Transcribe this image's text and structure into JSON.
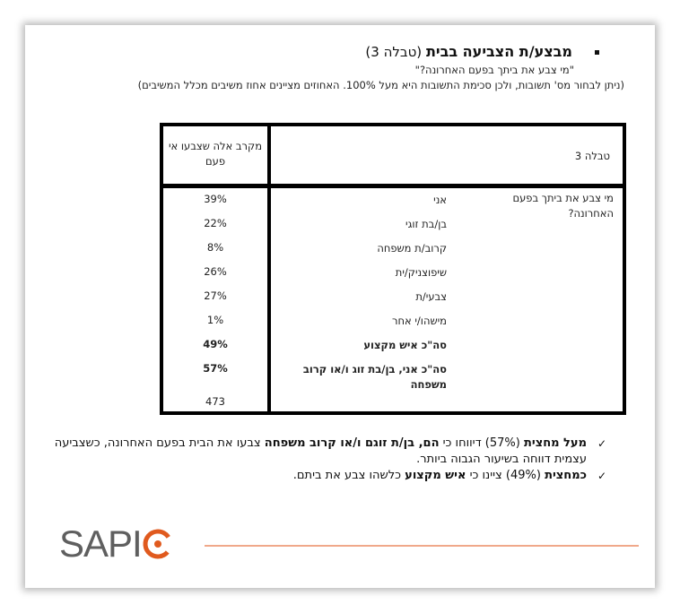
{
  "header": {
    "title_bold": "מבצע/ת הצביעה בבית",
    "title_rest": " (טבלה 3)",
    "question": "\"מי צבע את ביתך בפעם האחרונה?\"",
    "note": "(ניתן לבחור מס' תשובות, ולכן סכימת התשובות היא מעל 100%. האחוזים מציינים אחוז משיבים מכלל המשיבים)"
  },
  "table": {
    "col_header": "מקרב אלה שצבעו אי פעם",
    "table_label": "טבלה 3",
    "question": "מי צבע את ביתך בפעם האחרונה?",
    "rows": [
      {
        "label": "אני",
        "value": "39%"
      },
      {
        "label": "בן/בת זוגי",
        "value": "22%"
      },
      {
        "label": "קרוב/ת משפחה",
        "value": "8%"
      },
      {
        "label": "שיפוצניק/ית",
        "value": "26%"
      },
      {
        "label": "צבעי/ת",
        "value": "27%"
      },
      {
        "label": "מישהו/י אחר",
        "value": "1%"
      },
      {
        "label": "סה\"כ איש מקצוע",
        "value": "49%",
        "bold": true
      },
      {
        "label": "סה\"כ אני, בן/בת זוג ו/או קרוב משפחה",
        "value": "57%",
        "bold": true
      }
    ],
    "n": "473"
  },
  "findings": [
    {
      "segments": [
        {
          "t": "מעל מחצית",
          "b": true
        },
        {
          "t": " (57%) דיווחו כי "
        },
        {
          "t": "הם, בן/ת זוגם ו/או קרוב משפחה",
          "b": true
        },
        {
          "t": " צבעו את הבית בפעם האחרונה, כשצביעה עצמית דווחה בשיעור הגבוה ביותר."
        }
      ]
    },
    {
      "segments": [
        {
          "t": "כמחצית",
          "b": true
        },
        {
          "t": " (49%) ציינו כי "
        },
        {
          "t": "איש מקצוע",
          "b": true
        },
        {
          "t": " כלשהו צבע את ביתם."
        }
      ]
    }
  ],
  "logo": {
    "text": "SAPIO",
    "color": "#e05a1e"
  },
  "check_icon": "✓"
}
